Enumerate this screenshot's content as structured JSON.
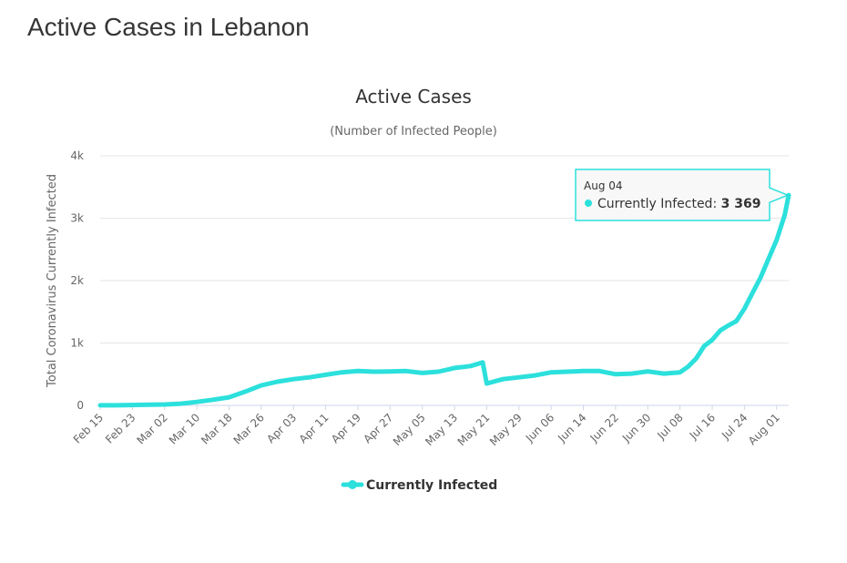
{
  "page": {
    "title": "Active Cases in Lebanon"
  },
  "chart_data": {
    "type": "line",
    "title": "Active Cases",
    "subtitle": "(Number of Infected People)",
    "ylabel": "Total Coronavirus Currently Infected",
    "xlabel": "",
    "ylim": [
      0,
      4000
    ],
    "y_ticks": [
      0,
      1000,
      2000,
      3000,
      4000
    ],
    "y_tick_labels": [
      "0",
      "1k",
      "2k",
      "3k",
      "4k"
    ],
    "x_tick_labels": [
      "Feb 15",
      "Feb 23",
      "Mar 02",
      "Mar 10",
      "Mar 18",
      "Mar 26",
      "Apr 03",
      "Apr 11",
      "Apr 19",
      "Apr 27",
      "May 05",
      "May 13",
      "May 21",
      "May 29",
      "Jun 06",
      "Jun 14",
      "Jun 22",
      "Jun 30",
      "Jul 08",
      "Jul 16",
      "Jul 24",
      "Aug 01"
    ],
    "grid": true,
    "legend_position": "bottom-center",
    "color": "#2ce0dc",
    "series": [
      {
        "name": "Currently Infected",
        "x": [
          "Feb 15",
          "Feb 21",
          "Feb 27",
          "Mar 02",
          "Mar 06",
          "Mar 10",
          "Mar 14",
          "Mar 18",
          "Mar 22",
          "Mar 26",
          "Mar 30",
          "Apr 03",
          "Apr 07",
          "Apr 11",
          "Apr 15",
          "Apr 19",
          "Apr 23",
          "Apr 27",
          "May 01",
          "May 05",
          "May 09",
          "May 13",
          "May 17",
          "May 19",
          "May 20",
          "May 21",
          "May 25",
          "May 29",
          "Jun 02",
          "Jun 06",
          "Jun 10",
          "Jun 14",
          "Jun 18",
          "Jun 22",
          "Jun 26",
          "Jun 30",
          "Jul 04",
          "Jul 08",
          "Jul 10",
          "Jul 12",
          "Jul 14",
          "Jul 16",
          "Jul 18",
          "Jul 20",
          "Jul 22",
          "Jul 24",
          "Jul 26",
          "Jul 28",
          "Jul 30",
          "Aug 01",
          "Aug 03",
          "Aug 04"
        ],
        "values": [
          1,
          3,
          10,
          15,
          28,
          55,
          90,
          130,
          220,
          320,
          380,
          420,
          450,
          490,
          530,
          550,
          540,
          545,
          550,
          520,
          540,
          600,
          630,
          670,
          690,
          350,
          420,
          450,
          480,
          530,
          540,
          550,
          550,
          500,
          510,
          545,
          510,
          530,
          620,
          750,
          950,
          1050,
          1200,
          1280,
          1350,
          1550,
          1800,
          2050,
          2350,
          2650,
          3050,
          3369
        ]
      }
    ],
    "tooltip": {
      "date": "Aug 04",
      "label": "Currently Infected:",
      "value": "3 369"
    }
  }
}
